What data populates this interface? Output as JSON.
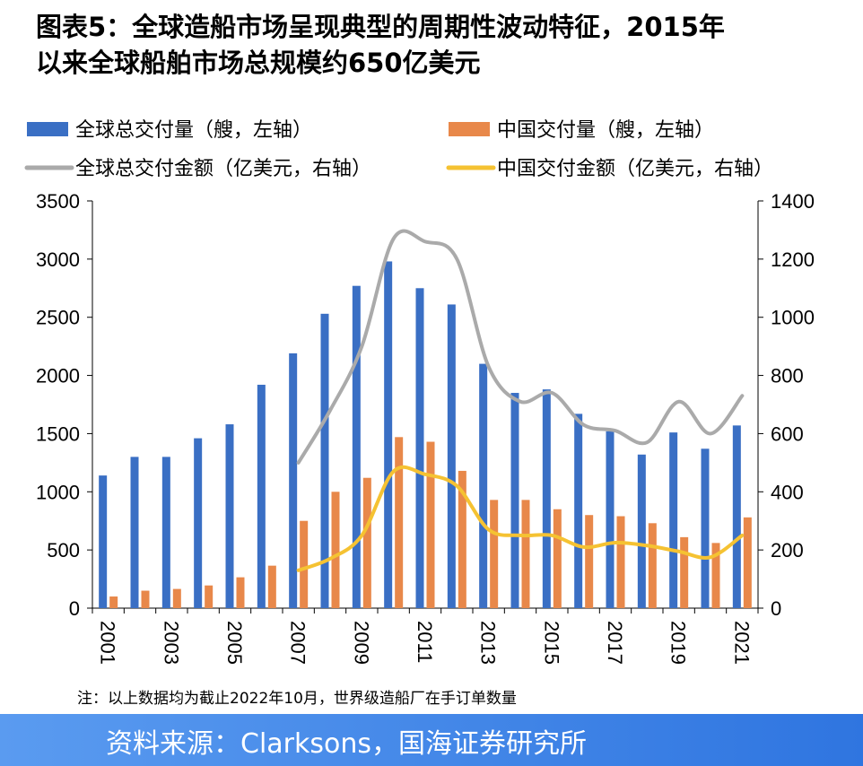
{
  "title": {
    "line1": "图表5：全球造船市场呈现典型的周期性波动特征，2015年",
    "line2": "以来全球船舶市场总规模约650亿美元"
  },
  "note": "注：以上数据均为截止2022年10月，世界级造船厂在手订单数量",
  "source": "资料来源：Clarksons，国海证券研究所",
  "colors": {
    "global_bar": "#3a6fc4",
    "china_bar": "#e8884a",
    "global_line": "#aaaaaa",
    "china_line": "#f5c232",
    "source_bar": "#3d85e8"
  },
  "chart_data": {
    "type": "bar",
    "legend_position": "top",
    "grid": false,
    "categories": [
      "2001",
      "2002",
      "2003",
      "2004",
      "2005",
      "2006",
      "2007",
      "2008",
      "2009",
      "2010",
      "2011",
      "2012",
      "2013",
      "2014",
      "2015",
      "2016",
      "2017",
      "2018",
      "2019",
      "2020",
      "2021"
    ],
    "x_tick_labels": [
      "2001",
      "2003",
      "2005",
      "2007",
      "2009",
      "2011",
      "2013",
      "2015",
      "2017",
      "2019",
      "2021"
    ],
    "y_left": {
      "ylim": [
        0,
        3500
      ],
      "ticks": [
        "0",
        "500",
        "1000",
        "1500",
        "2000",
        "2500",
        "3000",
        "3500"
      ]
    },
    "y_right": {
      "ylim": [
        0,
        1400
      ],
      "ticks": [
        "0",
        "200",
        "400",
        "600",
        "800",
        "1000",
        "1200",
        "1400"
      ]
    },
    "series": [
      {
        "name": "全球总交付量（艘，左轴）",
        "type": "bar",
        "axis": "left",
        "values": [
          1140,
          1300,
          1300,
          1460,
          1580,
          1920,
          2190,
          2530,
          2770,
          2980,
          2750,
          2610,
          2100,
          1850,
          1880,
          1670,
          1520,
          1320,
          1510,
          1370,
          1570
        ]
      },
      {
        "name": "中国交付量（艘，左轴）",
        "type": "bar",
        "axis": "left",
        "values": [
          100,
          150,
          165,
          195,
          265,
          365,
          750,
          1000,
          1120,
          1470,
          1430,
          1180,
          930,
          930,
          850,
          800,
          790,
          730,
          610,
          560,
          780
        ]
      },
      {
        "name": "全球总交付金额（亿美元，右轴）",
        "type": "line",
        "axis": "right",
        "x": [
          "2007",
          "2008",
          "2009",
          "2010",
          "2011",
          "2012",
          "2013",
          "2014",
          "2015",
          "2016",
          "2017",
          "2018",
          "2019",
          "2020",
          "2021"
        ],
        "values": [
          500,
          680,
          900,
          1270,
          1260,
          1200,
          830,
          710,
          740,
          630,
          610,
          570,
          710,
          600,
          730
        ]
      },
      {
        "name": "中国交付金额（亿美元，右轴）",
        "type": "line",
        "axis": "right",
        "x": [
          "2007",
          "2008",
          "2009",
          "2010",
          "2011",
          "2012",
          "2013",
          "2014",
          "2015",
          "2016",
          "2017",
          "2018",
          "2019",
          "2020",
          "2021"
        ],
        "values": [
          130,
          170,
          250,
          470,
          460,
          420,
          270,
          250,
          250,
          210,
          225,
          215,
          195,
          175,
          250
        ]
      }
    ]
  }
}
